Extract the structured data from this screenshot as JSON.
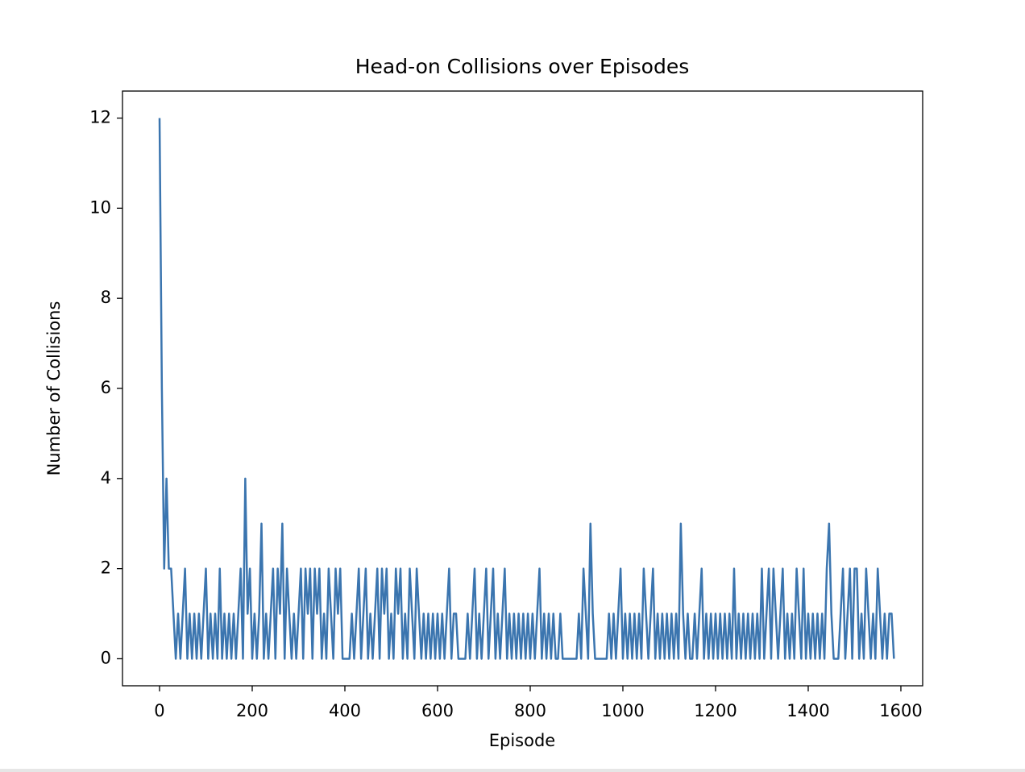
{
  "chart_data": {
    "type": "line",
    "title": "Head-on Collisions over Episodes",
    "xlabel": "Episode",
    "ylabel": "Number of Collisions",
    "xlim": [
      -80,
      1647
    ],
    "ylim": [
      -0.6,
      12.6
    ],
    "xticks": [
      0,
      200,
      400,
      600,
      800,
      1000,
      1200,
      1400,
      1600
    ],
    "yticks": [
      0,
      2,
      4,
      6,
      8,
      10,
      12
    ],
    "x": [
      0,
      5,
      10,
      15,
      20,
      25,
      30,
      35,
      40,
      45,
      50,
      55,
      60,
      65,
      70,
      75,
      80,
      85,
      90,
      95,
      100,
      105,
      110,
      115,
      120,
      125,
      130,
      135,
      140,
      145,
      150,
      155,
      160,
      165,
      170,
      175,
      180,
      185,
      190,
      195,
      200,
      205,
      210,
      215,
      220,
      225,
      230,
      235,
      240,
      245,
      250,
      255,
      260,
      265,
      270,
      275,
      280,
      285,
      290,
      295,
      300,
      305,
      310,
      315,
      320,
      325,
      330,
      335,
      340,
      345,
      350,
      355,
      360,
      365,
      370,
      375,
      380,
      385,
      390,
      395,
      400,
      405,
      410,
      415,
      420,
      425,
      430,
      435,
      440,
      445,
      450,
      455,
      460,
      465,
      470,
      475,
      480,
      485,
      490,
      495,
      500,
      505,
      510,
      515,
      520,
      525,
      530,
      535,
      540,
      545,
      550,
      555,
      560,
      565,
      570,
      575,
      580,
      585,
      590,
      595,
      600,
      605,
      610,
      615,
      620,
      625,
      630,
      635,
      640,
      645,
      650,
      655,
      660,
      665,
      670,
      675,
      680,
      685,
      690,
      695,
      700,
      705,
      710,
      715,
      720,
      725,
      730,
      735,
      740,
      745,
      750,
      755,
      760,
      765,
      770,
      775,
      780,
      785,
      790,
      795,
      800,
      805,
      810,
      815,
      820,
      825,
      830,
      835,
      840,
      845,
      850,
      855,
      860,
      865,
      870,
      875,
      880,
      885,
      890,
      895,
      900,
      905,
      910,
      915,
      920,
      925,
      930,
      935,
      940,
      945,
      950,
      955,
      960,
      965,
      970,
      975,
      980,
      985,
      990,
      995,
      1000,
      1005,
      1010,
      1015,
      1020,
      1025,
      1030,
      1035,
      1040,
      1045,
      1050,
      1055,
      1060,
      1065,
      1070,
      1075,
      1080,
      1085,
      1090,
      1095,
      1100,
      1105,
      1110,
      1115,
      1120,
      1125,
      1130,
      1135,
      1140,
      1145,
      1150,
      1155,
      1160,
      1165,
      1170,
      1175,
      1180,
      1185,
      1190,
      1195,
      1200,
      1205,
      1210,
      1215,
      1220,
      1225,
      1230,
      1235,
      1240,
      1245,
      1250,
      1255,
      1260,
      1265,
      1270,
      1275,
      1280,
      1285,
      1290,
      1295,
      1300,
      1305,
      1310,
      1315,
      1320,
      1325,
      1330,
      1335,
      1340,
      1345,
      1350,
      1355,
      1360,
      1365,
      1370,
      1375,
      1380,
      1385,
      1390,
      1395,
      1400,
      1405,
      1410,
      1415,
      1420,
      1425,
      1430,
      1435,
      1440,
      1445,
      1450,
      1455,
      1460,
      1465,
      1470,
      1475,
      1480,
      1485,
      1490,
      1495,
      1500,
      1505,
      1510,
      1515,
      1520,
      1525,
      1530,
      1535,
      1540,
      1545,
      1550,
      1555,
      1560,
      1565,
      1570,
      1575,
      1580,
      1585
    ],
    "series": [
      {
        "color": "#3b75af",
        "values": [
          12,
          6,
          2,
          4,
          2,
          2,
          1,
          0,
          1,
          0,
          1,
          2,
          0,
          1,
          0,
          1,
          0,
          1,
          0,
          1,
          2,
          0,
          1,
          0,
          1,
          0,
          2,
          0,
          1,
          0,
          1,
          0,
          1,
          0,
          1,
          2,
          0,
          4,
          1,
          2,
          0,
          1,
          0,
          1,
          3,
          0,
          1,
          0,
          1,
          2,
          0,
          2,
          1,
          3,
          0,
          2,
          1,
          0,
          1,
          0,
          1,
          2,
          0,
          2,
          1,
          2,
          0,
          2,
          1,
          2,
          0,
          1,
          0,
          2,
          1,
          0,
          2,
          1,
          2,
          0,
          0,
          0,
          0,
          1,
          0,
          1,
          2,
          0,
          1,
          2,
          0,
          1,
          0,
          1,
          2,
          0,
          2,
          1,
          2,
          0,
          1,
          0,
          2,
          1,
          2,
          0,
          1,
          0,
          2,
          1,
          0,
          2,
          1,
          0,
          1,
          0,
          1,
          0,
          1,
          0,
          1,
          0,
          1,
          0,
          1,
          2,
          0,
          1,
          1,
          0,
          0,
          0,
          0,
          1,
          0,
          1,
          2,
          0,
          1,
          0,
          1,
          2,
          0,
          1,
          2,
          0,
          1,
          0,
          1,
          2,
          0,
          1,
          0,
          1,
          0,
          1,
          0,
          1,
          0,
          1,
          0,
          1,
          0,
          1,
          2,
          0,
          1,
          0,
          1,
          0,
          1,
          0,
          0,
          1,
          0,
          0,
          0,
          0,
          0,
          0,
          0,
          1,
          0,
          2,
          1,
          0,
          3,
          1,
          0,
          0,
          0,
          0,
          0,
          0,
          1,
          0,
          1,
          0,
          1,
          2,
          0,
          1,
          0,
          1,
          0,
          1,
          0,
          1,
          0,
          2,
          1,
          0,
          1,
          2,
          0,
          1,
          0,
          1,
          0,
          1,
          0,
          1,
          0,
          1,
          0,
          3,
          1,
          0,
          1,
          0,
          0,
          1,
          0,
          1,
          2,
          0,
          1,
          0,
          1,
          0,
          1,
          0,
          1,
          0,
          1,
          0,
          1,
          0,
          2,
          0,
          1,
          0,
          1,
          0,
          1,
          0,
          1,
          0,
          1,
          0,
          2,
          0,
          1,
          2,
          0,
          2,
          1,
          0,
          1,
          2,
          0,
          1,
          0,
          1,
          0,
          2,
          1,
          0,
          2,
          0,
          1,
          0,
          1,
          0,
          1,
          0,
          1,
          0,
          2,
          3,
          1,
          0,
          0,
          0,
          1,
          2,
          0,
          1,
          2,
          0,
          2,
          2,
          0,
          1,
          0,
          2,
          1,
          0,
          1,
          0,
          2,
          1,
          0,
          1,
          0,
          1,
          1,
          0
        ]
      }
    ]
  }
}
